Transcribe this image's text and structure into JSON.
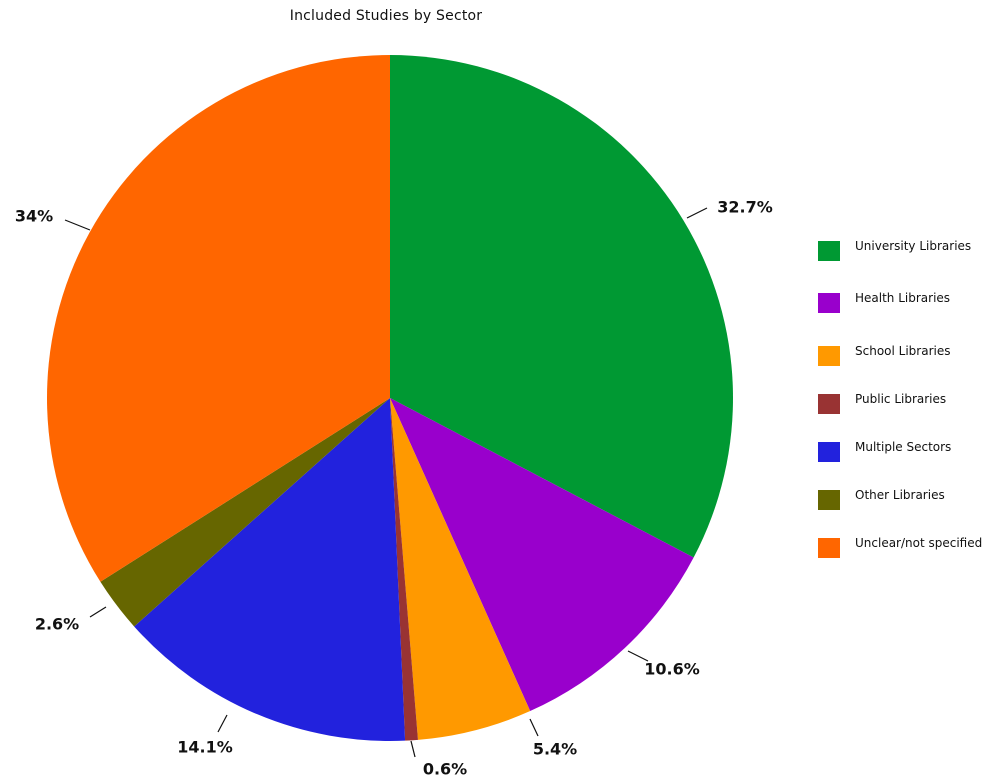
{
  "chart_data": {
    "type": "pie",
    "title": "Included Studies by Sector",
    "slices": [
      {
        "name": "University Libraries",
        "value": 32.7,
        "label": "32.7%",
        "color": "#009933"
      },
      {
        "name": "Health Libraries",
        "value": 10.6,
        "label": "10.6%",
        "color": "#9900cc"
      },
      {
        "name": "School Libraries",
        "value": 5.4,
        "label": "5.4%",
        "color": "#ff9900"
      },
      {
        "name": "Public Libraries",
        "value": 0.6,
        "label": "0.6%",
        "color": "#993333"
      },
      {
        "name": "Multiple Sectors",
        "value": 14.1,
        "label": "14.1%",
        "color": "#2222dd"
      },
      {
        "name": "Other Libraries",
        "value": 2.6,
        "label": "2.6%",
        "color": "#666600"
      },
      {
        "name": "Unclear/not specified",
        "value": 34.0,
        "label": "34%",
        "color": "#ff6600"
      }
    ],
    "legend": {
      "placement": "right",
      "items": [
        {
          "label": "University Libraries",
          "color": "#009933"
        },
        {
          "label": "Health Libraries",
          "color": "#9900cc"
        },
        {
          "label": "School Libraries",
          "color": "#ff9900"
        },
        {
          "label": "Public Libraries",
          "color": "#993333"
        },
        {
          "label": "Multiple Sectors",
          "color": "#2222dd"
        },
        {
          "label": "Other Libraries",
          "color": "#666600"
        },
        {
          "label": "Unclear/not specified",
          "color": "#ff6600"
        }
      ]
    }
  }
}
